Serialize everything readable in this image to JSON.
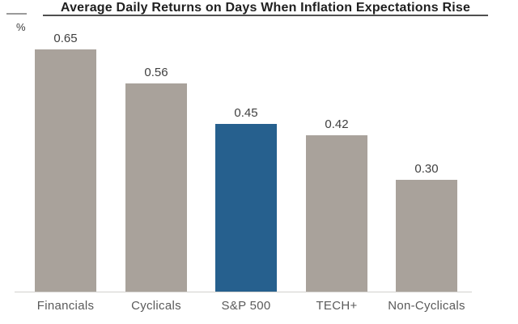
{
  "chart_data": {
    "type": "bar",
    "title": "Average Daily Returns on Days When Inflation Expectations Rise",
    "ylabel": "%",
    "xlabel": "",
    "categories": [
      "Financials",
      "Cyclicals",
      "S&P 500",
      "TECH+",
      "Non-Cyclicals"
    ],
    "values": [
      0.65,
      0.56,
      0.45,
      0.42,
      0.3
    ],
    "value_labels": [
      "0.65",
      "0.56",
      "0.45",
      "0.42",
      "0.30"
    ],
    "ylim": [
      0,
      0.72
    ],
    "grid": false,
    "legend": "none",
    "y_axis_ticks": "none",
    "highlight_category": "S&P 500",
    "bar_colors": [
      "#a9a29b",
      "#a9a29b",
      "#26608e",
      "#a9a29b",
      "#a9a29b"
    ]
  },
  "colors": {
    "background": "#ffffff",
    "bar_default": "#a9a29b",
    "bar_highlight": "#26608e",
    "axis_line": "#d2d0cd",
    "title_underline": "#4f4f4f",
    "corner_line": "#9a9a9a",
    "title_text": "#1f1f1f",
    "value_label_text": "#3f3f3f",
    "category_label_text": "#5a5a5a"
  }
}
